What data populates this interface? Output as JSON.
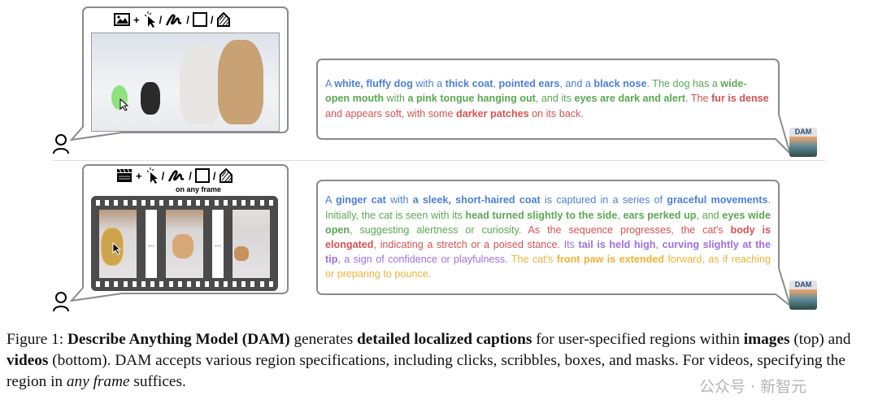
{
  "colors": {
    "blue": "#4c7fd8",
    "green": "#5aa852",
    "red": "#d65252",
    "purple": "#9d6fe6",
    "orange": "#eeb23a",
    "border": "#8a8a8a"
  },
  "top": {
    "input_icons": [
      "image-icon",
      "click-icon",
      "scribble-icon",
      "box-icon",
      "mask-icon"
    ],
    "separators": {
      "plus": "+",
      "slash": "/"
    },
    "segments": [
      {
        "t": "A ",
        "c": "blue"
      },
      {
        "t": "white, fluffy dog",
        "c": "blue",
        "b": true
      },
      {
        "t": " with a ",
        "c": "blue"
      },
      {
        "t": "thick coat",
        "c": "blue",
        "b": true
      },
      {
        "t": ", ",
        "c": "blue"
      },
      {
        "t": "pointed ears",
        "c": "blue",
        "b": true
      },
      {
        "t": ", and a ",
        "c": "blue"
      },
      {
        "t": "black nose",
        "c": "blue",
        "b": true
      },
      {
        "t": ". The dog has a ",
        "c": "green"
      },
      {
        "t": "wide-open mouth",
        "c": "green",
        "b": true
      },
      {
        "t": " with ",
        "c": "green"
      },
      {
        "t": "a pink tongue hanging out",
        "c": "green",
        "b": true
      },
      {
        "t": ", and its ",
        "c": "green"
      },
      {
        "t": "eyes are dark and alert",
        "c": "green",
        "b": true
      },
      {
        "t": ". ",
        "c": "green"
      },
      {
        "t": "The ",
        "c": "red"
      },
      {
        "t": "fur is dense",
        "c": "red",
        "b": true
      },
      {
        "t": " and appears soft, with some ",
        "c": "red"
      },
      {
        "t": "darker patches",
        "c": "red",
        "b": true
      },
      {
        "t": " on its back.",
        "c": "red"
      }
    ],
    "dam_label": "DAM"
  },
  "bottom": {
    "input_icons": [
      "video-clapperboard-icon",
      "click-icon",
      "scribble-icon",
      "box-icon",
      "mask-icon"
    ],
    "separators": {
      "plus": "+",
      "slash": "/"
    },
    "on_any_frame": "on any frame",
    "ellipsis": "...",
    "segments": [
      {
        "t": "A ",
        "c": "blue"
      },
      {
        "t": "ginger cat",
        "c": "blue",
        "b": true
      },
      {
        "t": " with ",
        "c": "blue"
      },
      {
        "t": "a sleek, short-haired coat",
        "c": "blue",
        "b": true
      },
      {
        "t": " is captured in a series of ",
        "c": "blue"
      },
      {
        "t": "graceful movements",
        "c": "blue",
        "b": true
      },
      {
        "t": ". ",
        "c": "blue"
      },
      {
        "t": "Initially, the cat is seen with its ",
        "c": "green"
      },
      {
        "t": "head turned slightly to the side",
        "c": "green",
        "b": true
      },
      {
        "t": ", ",
        "c": "green"
      },
      {
        "t": "ears perked up",
        "c": "green",
        "b": true
      },
      {
        "t": ", and ",
        "c": "green"
      },
      {
        "t": "eyes wide open",
        "c": "green",
        "b": true
      },
      {
        "t": ", suggesting alertness or curiosity. ",
        "c": "green"
      },
      {
        "t": "As the sequence progresses, the cat's ",
        "c": "red"
      },
      {
        "t": "body is elongated",
        "c": "red",
        "b": true
      },
      {
        "t": ", indicating a stretch or a poised stance. ",
        "c": "red"
      },
      {
        "t": "Its ",
        "c": "purple"
      },
      {
        "t": "tail is held high",
        "c": "purple",
        "b": true
      },
      {
        "t": ", ",
        "c": "purple"
      },
      {
        "t": "curving slightly at the tip",
        "c": "purple",
        "b": true
      },
      {
        "t": ", a sign of confidence or playfulness. ",
        "c": "purple"
      },
      {
        "t": "The cat's ",
        "c": "orange"
      },
      {
        "t": "front paw is extended",
        "c": "orange",
        "b": true
      },
      {
        "t": " forward, as if reaching or preparing to pounce.",
        "c": "orange"
      }
    ],
    "dam_label": "DAM"
  },
  "caption": {
    "segments": [
      {
        "t": "Figure 1: "
      },
      {
        "t": "Describe Anything Model (DAM)",
        "b": true
      },
      {
        "t": " generates "
      },
      {
        "t": "detailed localized captions",
        "b": true
      },
      {
        "t": " for user-specified regions within "
      },
      {
        "t": "images",
        "b": true
      },
      {
        "t": " (top) and "
      },
      {
        "t": "videos",
        "b": true
      },
      {
        "t": " (bottom). DAM accepts various region specifications, including clicks, scribbles, boxes, and masks. For videos, specifying the region in "
      },
      {
        "t": "any frame",
        "i": true
      },
      {
        "t": " suffices."
      }
    ],
    "watermark": "公众号 · 新智元"
  }
}
